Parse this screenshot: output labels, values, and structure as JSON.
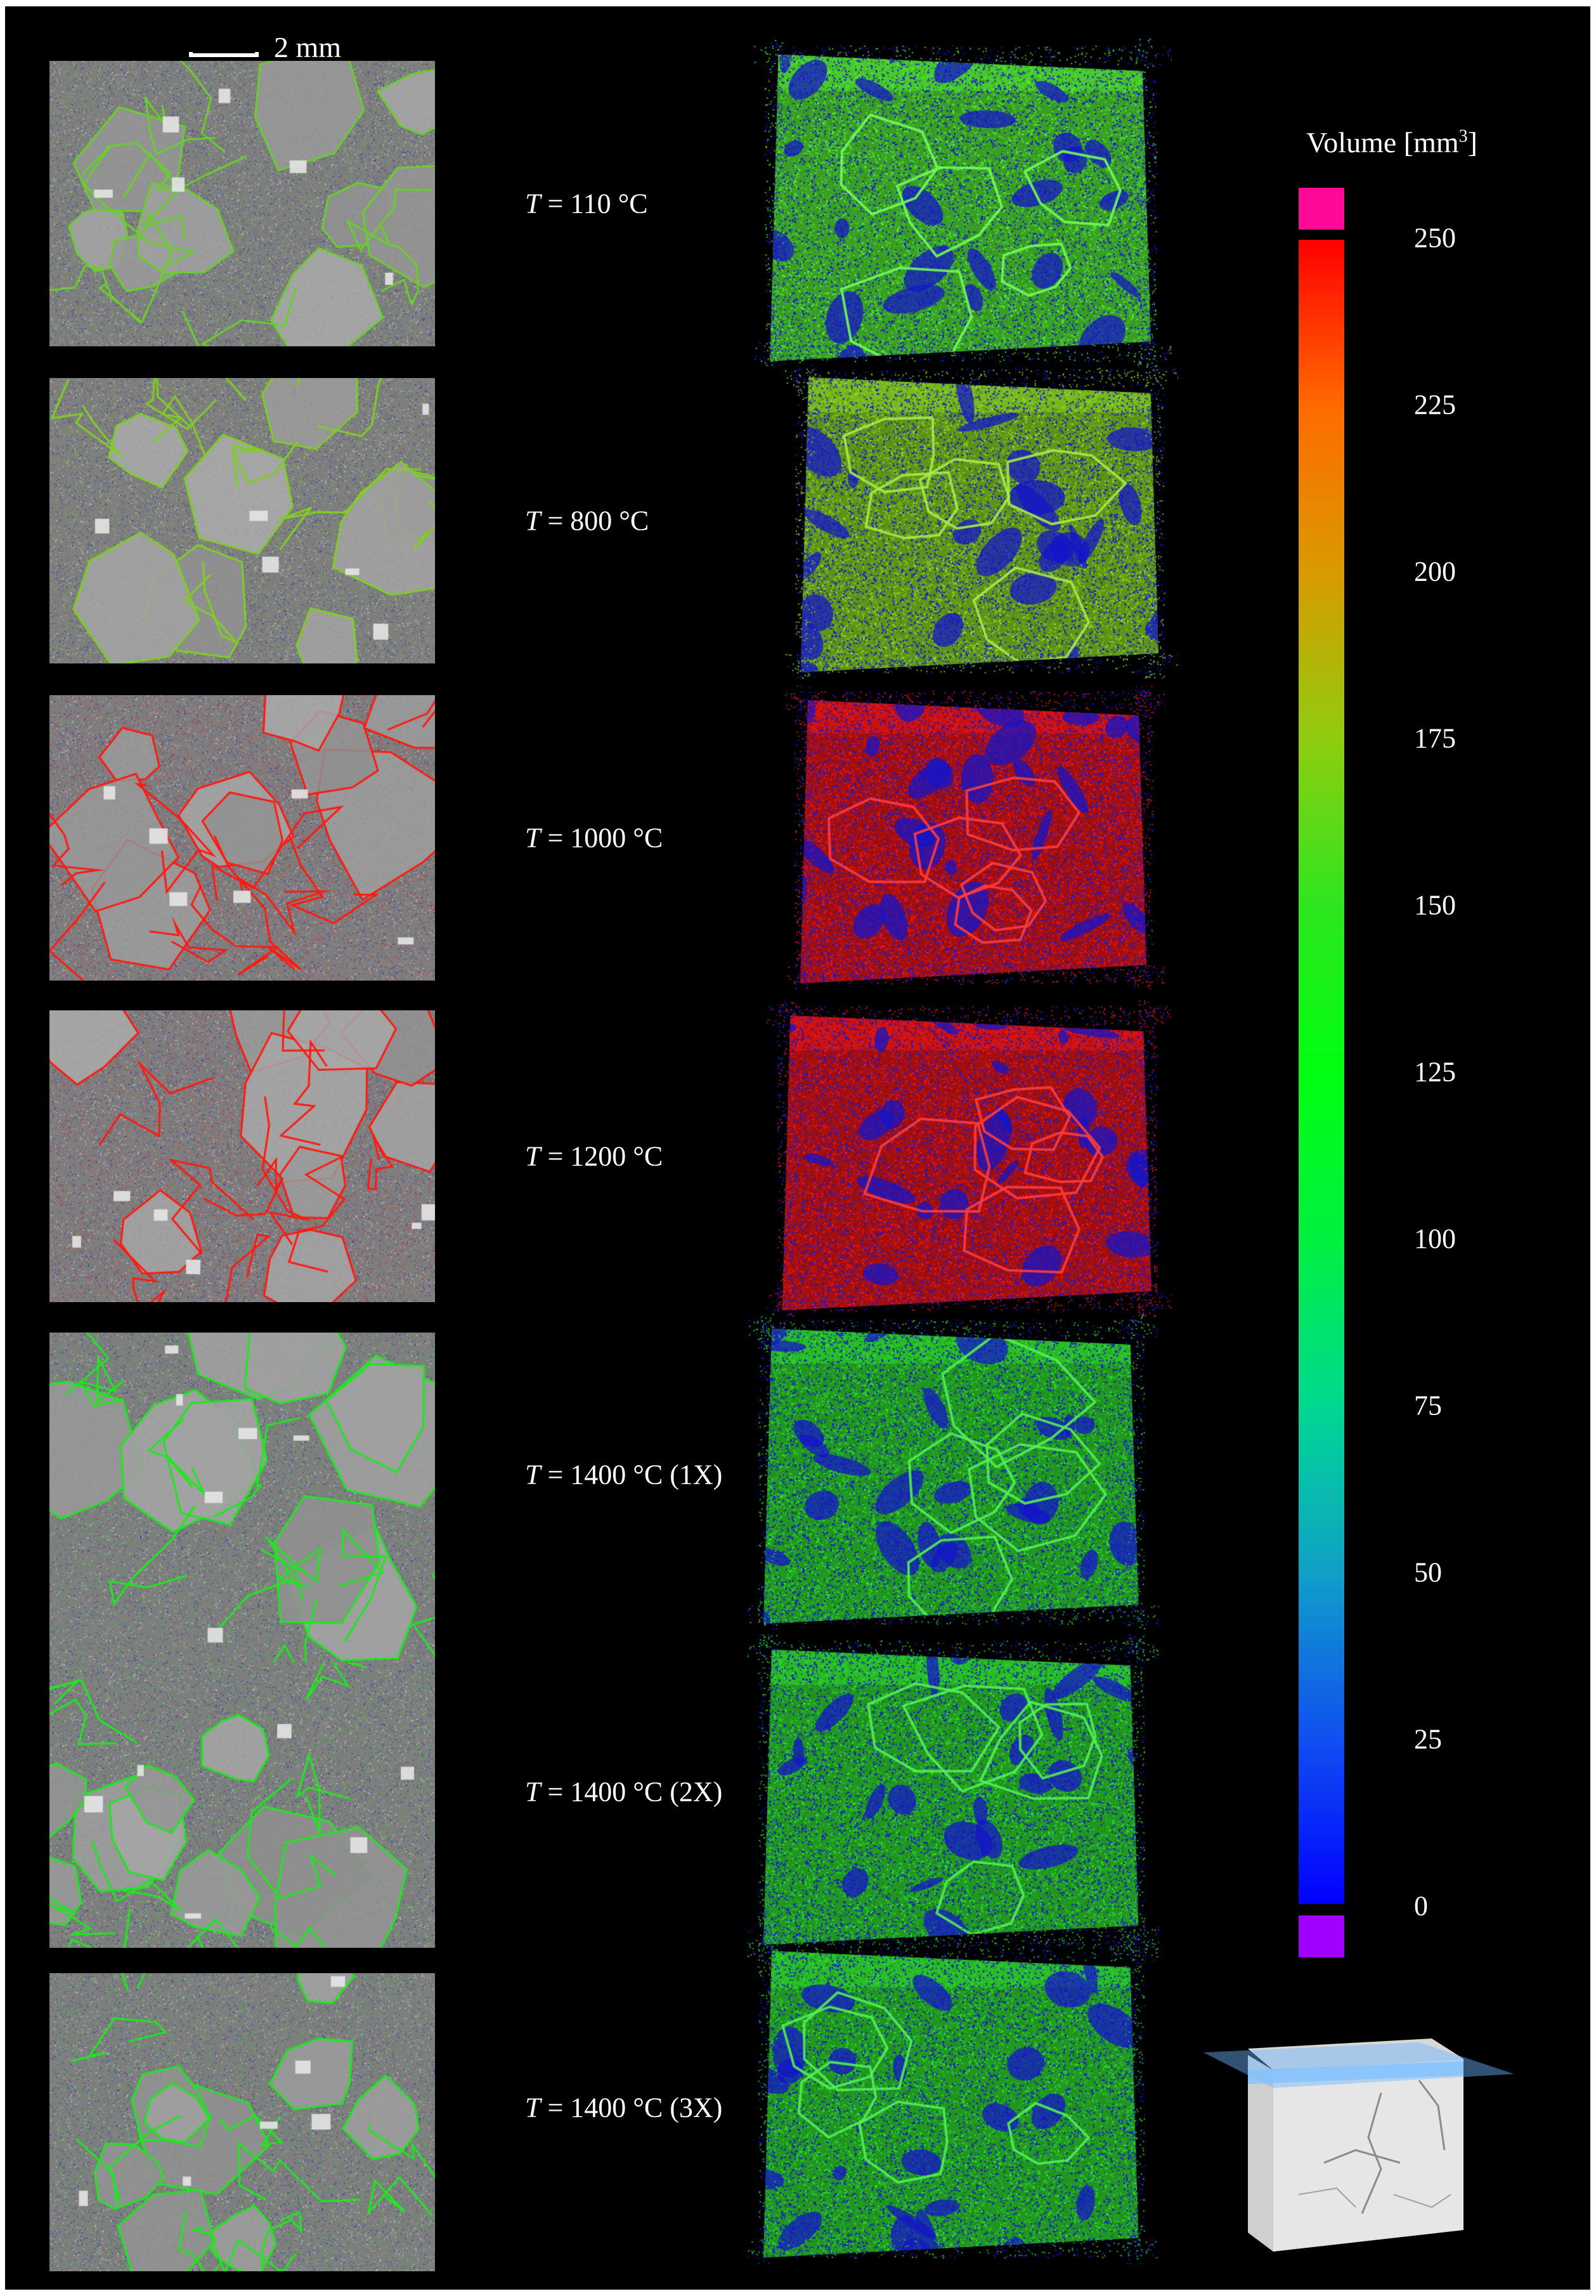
{
  "scale_bar": {
    "label": "2 mm"
  },
  "colorbar": {
    "title": "Volume [mm",
    "title_sup": "3",
    "title_close": "]",
    "ticks": [
      "250",
      "225",
      "200",
      "175",
      "150",
      "125",
      "100",
      "75",
      "50",
      "25",
      "0"
    ],
    "colors": {
      "overflow_cap": "#ff0a96",
      "underflow_cap": "#a000ff"
    },
    "stops": [
      "#ff0000",
      "#ff6a00",
      "#d99a00",
      "#90cc10",
      "#2ee61e",
      "#00ff10",
      "#00f040",
      "#00d890",
      "#10a0c8",
      "#1050f0",
      "#0000ff"
    ]
  },
  "rows": [
    {
      "italic": "T",
      "text": " = 110 °C",
      "tint": "#4cd430",
      "slice_tint": "#68d02a",
      "blue": "#1418c8"
    },
    {
      "italic": "T",
      "text": " = 800 °C",
      "tint": "#7ec420",
      "slice_tint": "#7fcf22",
      "blue": "#1418c8"
    },
    {
      "italic": "T",
      "text": " = 1000 °C",
      "tint": "#d81414",
      "slice_tint": "#ff1a10",
      "blue": "#1418c8"
    },
    {
      "italic": "T",
      "text": " = 1200 °C",
      "tint": "#d81414",
      "slice_tint": "#ff1a10",
      "blue": "#1418c8"
    },
    {
      "italic": "T",
      "text": " = 1400 °C (1X)",
      "tint": "#2cc82a",
      "slice_tint": "#1ee81e",
      "blue": "#1418c8"
    },
    {
      "italic": "T",
      "text": " = 1400 °C (2X)",
      "tint": "#2cc82a",
      "slice_tint": "#1ee81e",
      "blue": "#1418c8"
    },
    {
      "italic": "T",
      "text": " = 1400 °C (3X)",
      "tint": "#2cc82a",
      "slice_tint": "#1ee81e",
      "blue": "#1418c8"
    }
  ]
}
